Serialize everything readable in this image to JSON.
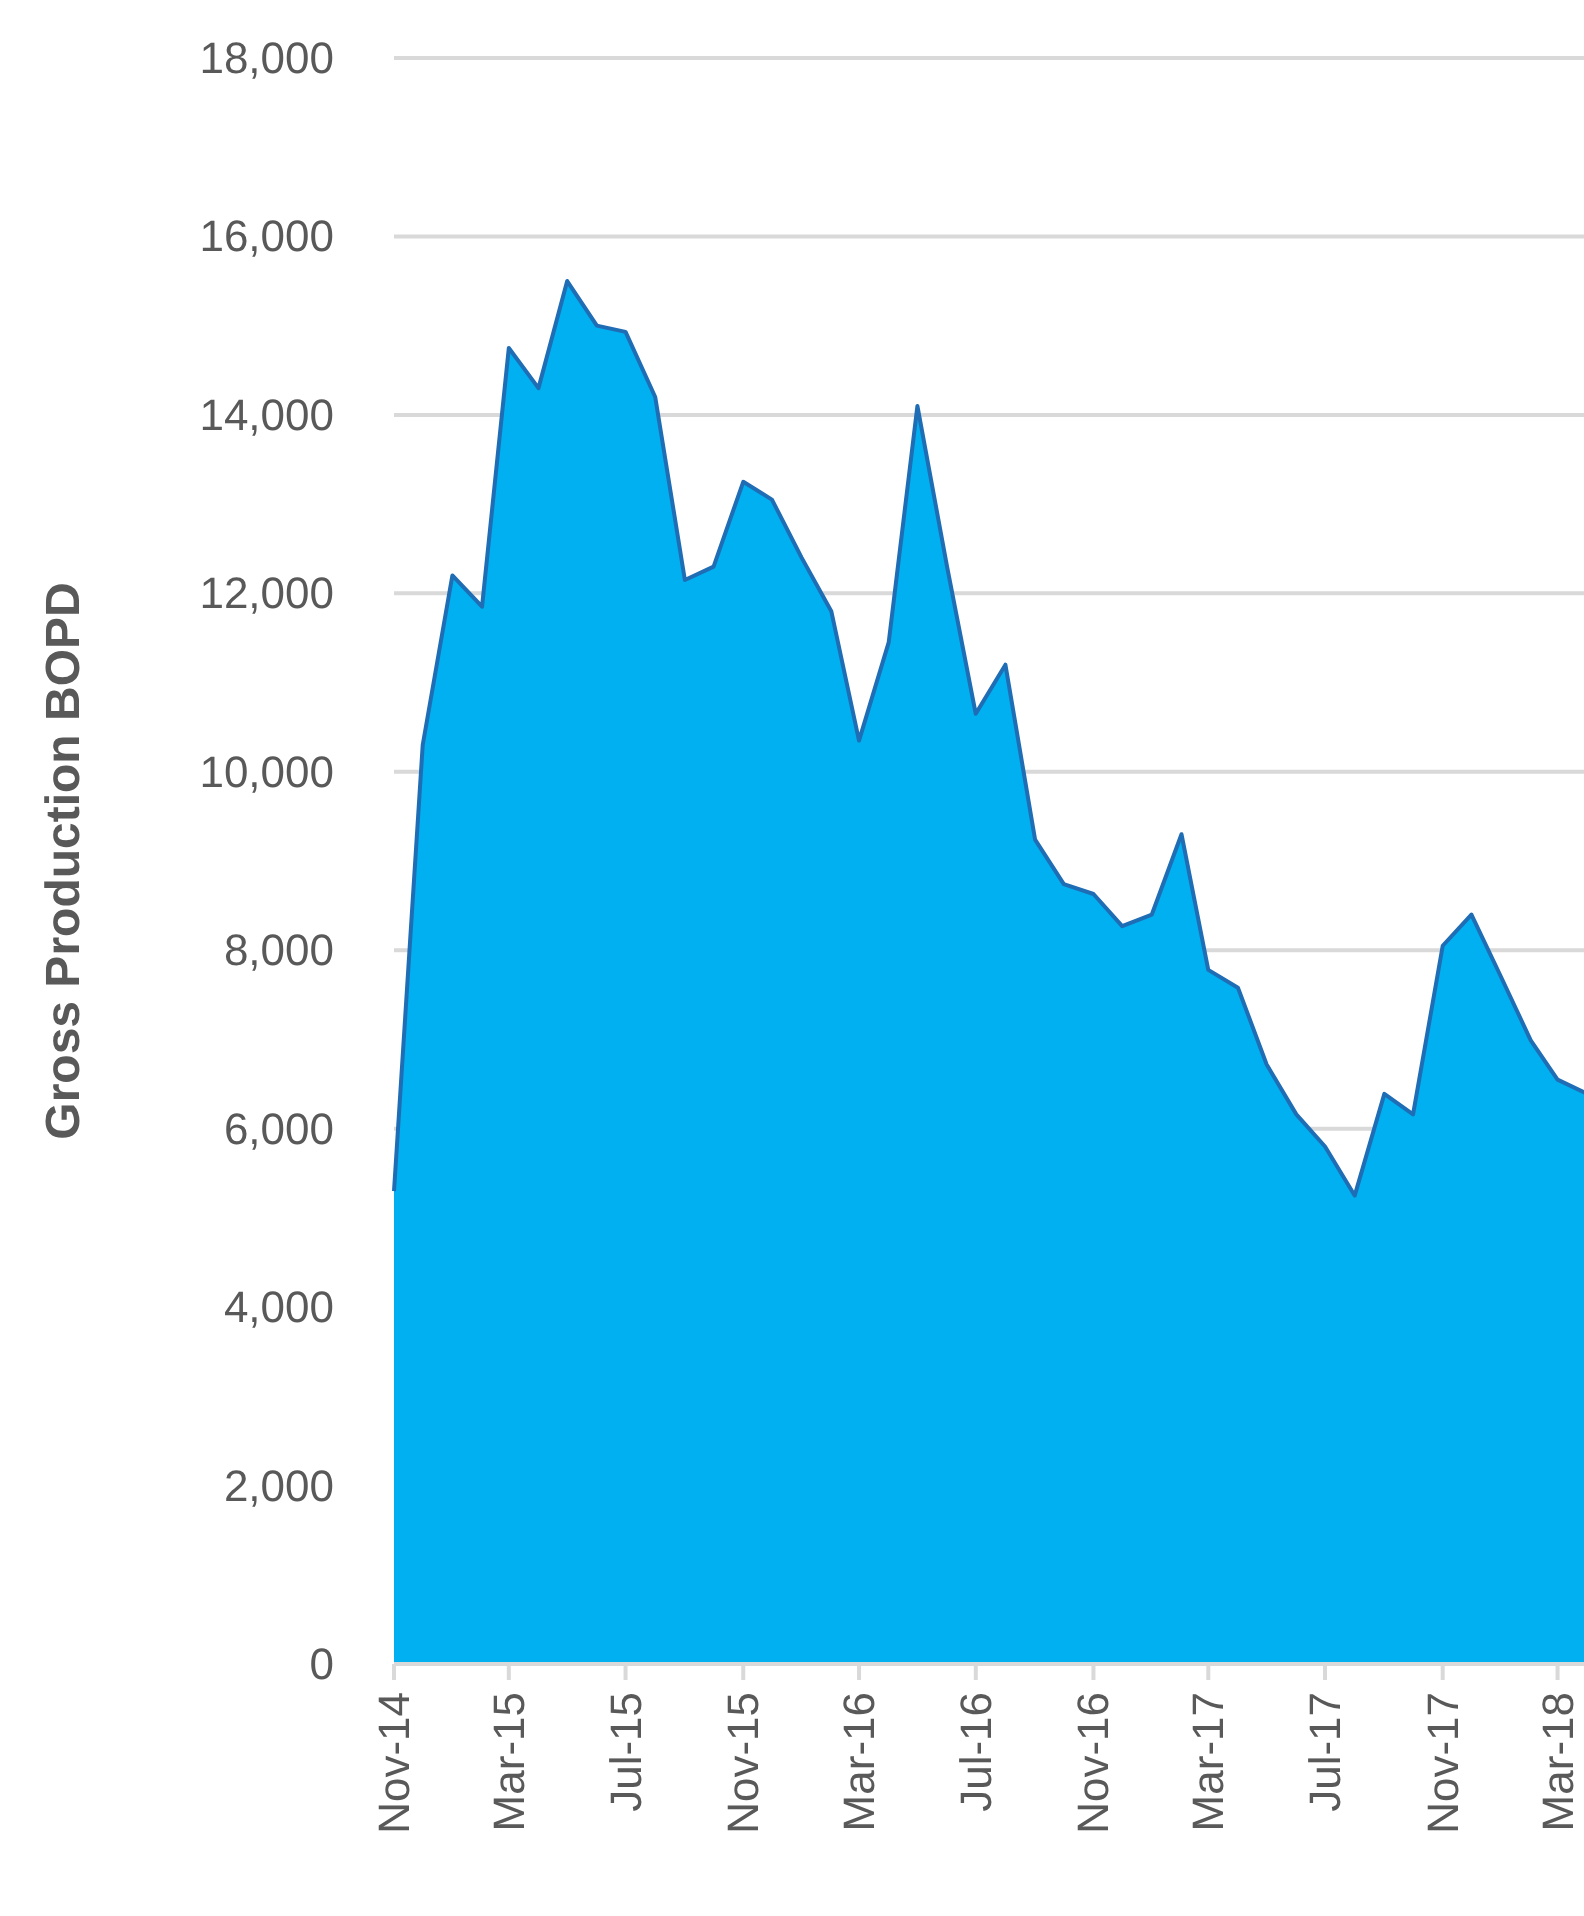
{
  "chart_data": {
    "type": "area",
    "ylabel": "Gross Production BOPD",
    "x": [
      "2014-11",
      "2014-12",
      "2015-01",
      "2015-02",
      "2015-03",
      "2015-04",
      "2015-05",
      "2015-06",
      "2015-07",
      "2015-08",
      "2015-09",
      "2015-10",
      "2015-11",
      "2015-12",
      "2016-01",
      "2016-02",
      "2016-03",
      "2016-04",
      "2016-05",
      "2016-06",
      "2016-07",
      "2016-08",
      "2016-09",
      "2016-10",
      "2016-11",
      "2016-12",
      "2017-01",
      "2017-02",
      "2017-03",
      "2017-04",
      "2017-05",
      "2017-06",
      "2017-07",
      "2017-08",
      "2017-09",
      "2017-10",
      "2017-11",
      "2017-12",
      "2018-01",
      "2018-02",
      "2018-03",
      "2018-04"
    ],
    "series": [
      {
        "color": "#00b0f0",
        "values": [
          5300,
          10300,
          12200,
          11850,
          14750,
          14300,
          15500,
          15000,
          14930,
          14200,
          12150,
          12300,
          13250,
          13050,
          12400,
          11800,
          10350,
          11450,
          14100,
          12300,
          10650,
          11200,
          9240,
          8740,
          8630,
          8270,
          8400,
          9300,
          7780,
          7580,
          6720,
          6160,
          5800,
          5250,
          6390,
          6160,
          8050,
          8400,
          7700,
          6990,
          6550,
          6390
        ]
      }
    ],
    "xlim": [
      "2014-11",
      "2018-04"
    ],
    "xticks": [
      {
        "value": "2014-11",
        "label": "Nov-14"
      },
      {
        "value": "2015-03",
        "label": "Mar-15"
      },
      {
        "value": "2015-07",
        "label": "Jul-15"
      },
      {
        "value": "2015-11",
        "label": "Nov-15"
      },
      {
        "value": "2016-03",
        "label": "Mar-16"
      },
      {
        "value": "2016-07",
        "label": "Jul-16"
      },
      {
        "value": "2016-11",
        "label": "Nov-16"
      },
      {
        "value": "2017-03",
        "label": "Mar-17"
      },
      {
        "value": "2017-07",
        "label": "Jul-17"
      },
      {
        "value": "2017-11",
        "label": "Nov-17"
      },
      {
        "value": "2018-03",
        "label": "Mar-18"
      }
    ],
    "ylim": [
      0,
      18000
    ],
    "yticks": [
      {
        "value": 0,
        "label": "0"
      },
      {
        "value": 2000,
        "label": "2,000"
      },
      {
        "value": 4000,
        "label": "4,000"
      },
      {
        "value": 6000,
        "label": "6,000"
      },
      {
        "value": 8000,
        "label": "8,000"
      },
      {
        "value": 10000,
        "label": "10,000"
      },
      {
        "value": 12000,
        "label": "12,000"
      },
      {
        "value": 14000,
        "label": "14,000"
      },
      {
        "value": 16000,
        "label": "16,000"
      },
      {
        "value": 18000,
        "label": "18,000"
      }
    ],
    "grid": "y"
  }
}
